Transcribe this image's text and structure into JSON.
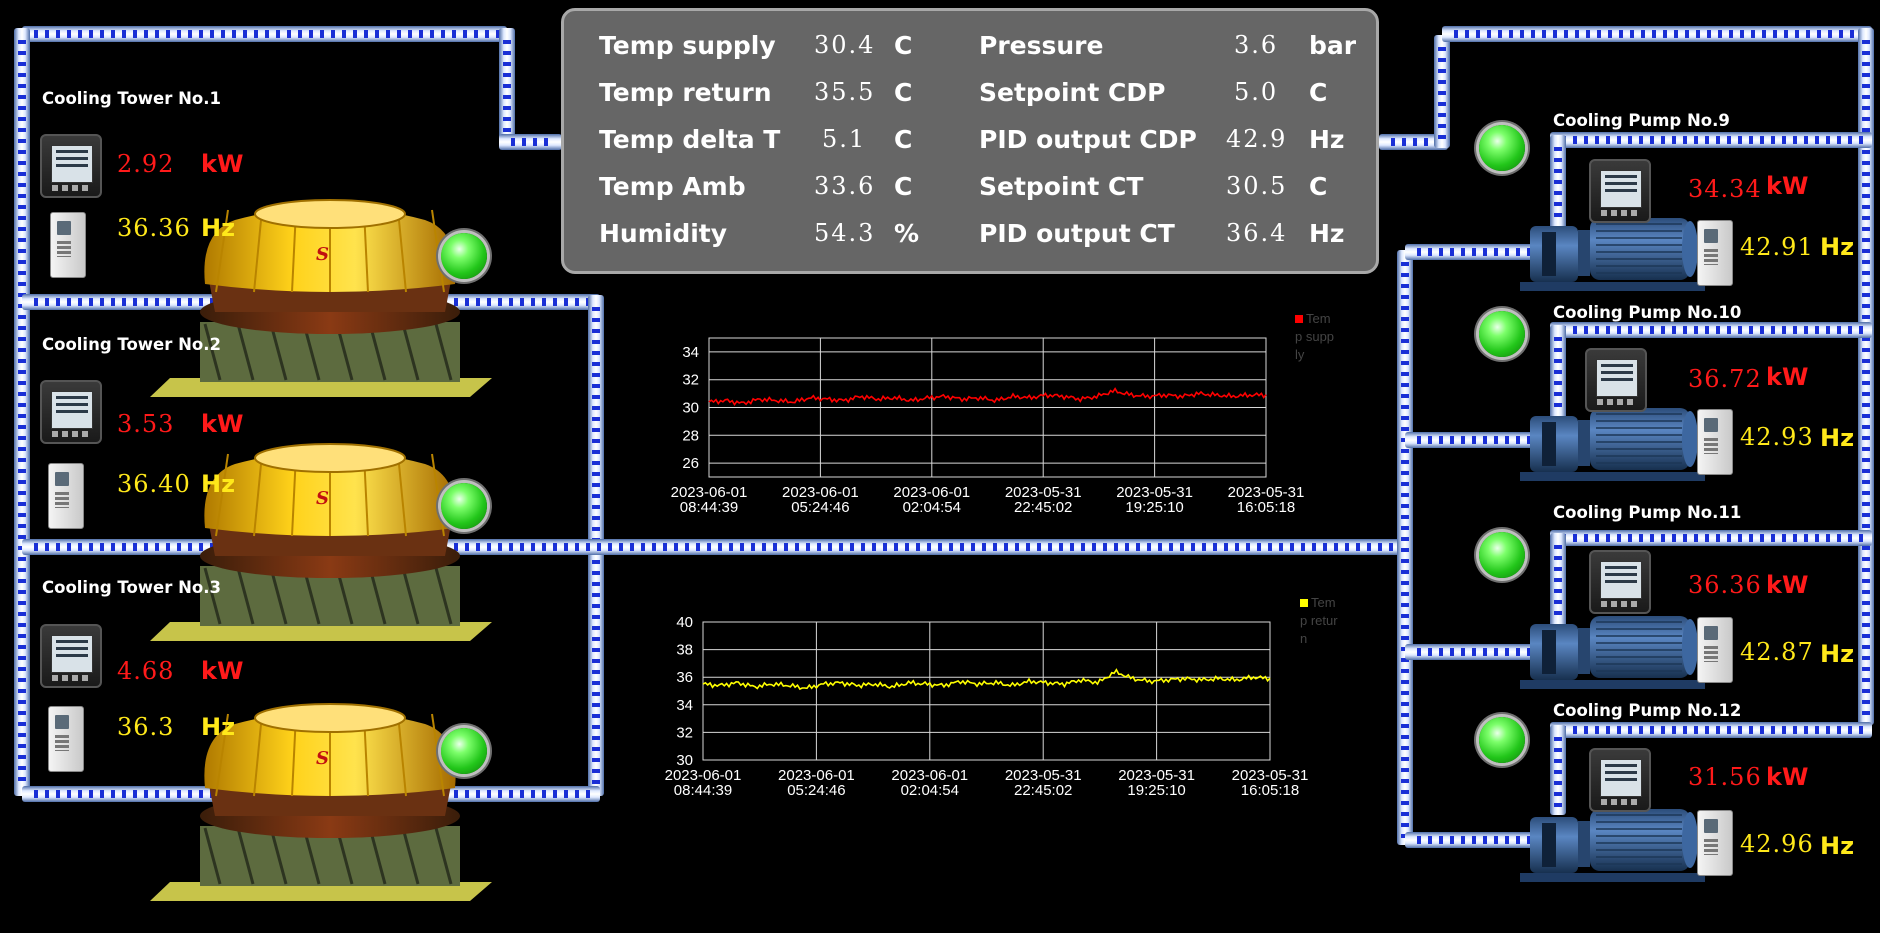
{
  "panel": {
    "rows": [
      {
        "label": "Temp supply",
        "value": "30.4",
        "unit": "C"
      },
      {
        "label": "Temp return",
        "value": "35.5",
        "unit": "C"
      },
      {
        "label": "Temp delta T",
        "value": "5.1",
        "unit": "C"
      },
      {
        "label": "Temp Amb",
        "value": "33.6",
        "unit": "C"
      },
      {
        "label": "Humidity",
        "value": "54.3",
        "unit": "%"
      },
      {
        "label": "Pressure",
        "value": "3.6",
        "unit": "bar"
      },
      {
        "label": "Setpoint CDP",
        "value": "5.0",
        "unit": "C"
      },
      {
        "label": "PID output CDP",
        "value": "42.9",
        "unit": "Hz"
      },
      {
        "label": "Setpoint CT",
        "value": "30.5",
        "unit": "C"
      },
      {
        "label": "PID output CT",
        "value": "36.4",
        "unit": "Hz"
      }
    ]
  },
  "towers": [
    {
      "name": "Cooling Tower No.1",
      "kw": "2.92",
      "kw_unit": "kW",
      "hz": "36.36",
      "hz_unit": "Hz",
      "status": "running"
    },
    {
      "name": "Cooling Tower No.2",
      "kw": "3.53",
      "kw_unit": "kW",
      "hz": "36.40",
      "hz_unit": "Hz",
      "status": "running"
    },
    {
      "name": "Cooling Tower No.3",
      "kw": "4.68",
      "kw_unit": "kW",
      "hz": "36.3",
      "hz_unit": "Hz",
      "status": "running"
    }
  ],
  "pumps": [
    {
      "name": "Cooling Pump No.9",
      "kw": "34.34",
      "kw_unit": "kW",
      "hz": "42.91",
      "hz_unit": "Hz",
      "status": "running"
    },
    {
      "name": "Cooling Pump No.10",
      "kw": "36.72",
      "kw_unit": "kW",
      "hz": "42.93",
      "hz_unit": "Hz",
      "status": "running"
    },
    {
      "name": "Cooling Pump No.11",
      "kw": "36.36",
      "kw_unit": "kW",
      "hz": "42.87",
      "hz_unit": "Hz",
      "status": "running"
    },
    {
      "name": "Cooling Pump No.12",
      "kw": "31.56",
      "kw_unit": "kW",
      "hz": "42.96",
      "hz_unit": "Hz",
      "status": "running"
    }
  ],
  "colors": {
    "kw": "#ff1a1a",
    "hz": "#ffe81a",
    "led": "#22c61a",
    "pipe": "#7ea3e0",
    "panel": "#666666"
  },
  "chart_data": [
    {
      "type": "line",
      "title": "",
      "series": [
        {
          "name": "Temp supply",
          "color": "#ff0000",
          "values": [
            30.4,
            30.5,
            30.3,
            30.6,
            30.5,
            30.4,
            30.7,
            30.6,
            30.5,
            30.8,
            30.6,
            30.7,
            30.5,
            30.7,
            30.8,
            30.6,
            30.7,
            30.5,
            30.8,
            30.7,
            30.9,
            30.8,
            30.6,
            30.8,
            31.2,
            30.9,
            30.8,
            30.9,
            30.8,
            31.0,
            30.9,
            30.8,
            30.9,
            30.9
          ]
        }
      ],
      "x_ticks": [
        "2023-06-01 08:44:39",
        "2023-06-01 05:24:46",
        "2023-06-01 02:04:54",
        "2023-05-31 22:45:02",
        "2023-05-31 19:25:10",
        "2023-05-31 16:05:18"
      ],
      "y_ticks": [
        26,
        28,
        30,
        32,
        34
      ],
      "ylim": [
        25,
        35
      ],
      "grid": true,
      "legend": "top-right"
    },
    {
      "type": "line",
      "title": "",
      "series": [
        {
          "name": "Temp return",
          "color": "#ffff00",
          "values": [
            35.5,
            35.4,
            35.6,
            35.3,
            35.5,
            35.4,
            35.2,
            35.5,
            35.6,
            35.4,
            35.5,
            35.3,
            35.6,
            35.5,
            35.4,
            35.7,
            35.5,
            35.6,
            35.4,
            35.7,
            35.6,
            35.5,
            35.8,
            35.6,
            36.4,
            35.9,
            35.7,
            35.8,
            35.9,
            35.8,
            35.9,
            35.8,
            36.0,
            35.9
          ]
        }
      ],
      "x_ticks": [
        "2023-06-01 08:44:39",
        "2023-06-01 05:24:46",
        "2023-06-01 02:04:54",
        "2023-05-31 22:45:02",
        "2023-05-31 19:25:10",
        "2023-05-31 16:05:18"
      ],
      "y_ticks": [
        30,
        32,
        34,
        36,
        38,
        40
      ],
      "ylim": [
        30,
        40
      ],
      "grid": true,
      "legend": "top-right"
    }
  ]
}
